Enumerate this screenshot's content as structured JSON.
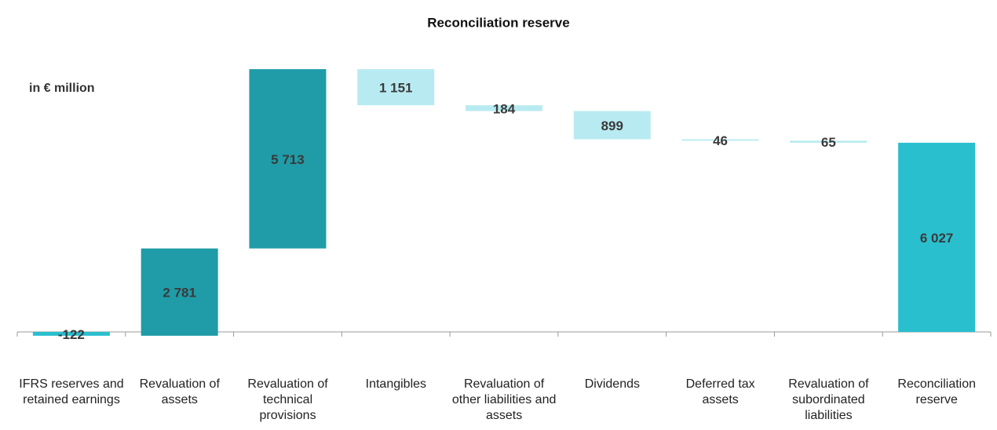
{
  "chart_data": {
    "type": "waterfall",
    "title": "Reconciliation reserve",
    "unit_label": "in € million",
    "categories": [
      "IFRS reserves and retained earnings",
      "Revaluation of assets",
      "Revaluation of technical provisions",
      "Intangibles",
      "Revaluation of other liabilities and assets",
      "Dividends",
      "Deferred tax assets",
      "Revaluation of subordinated liabilities",
      "Reconciliation reserve"
    ],
    "values": [
      -122,
      2781,
      5713,
      -1151,
      -184,
      -899,
      -46,
      -65,
      6027
    ],
    "value_labels": [
      "-122",
      "2 781",
      "5 713",
      "1 151",
      "184",
      "899",
      "46",
      "65",
      "6 027"
    ],
    "measure": [
      "relative",
      "relative",
      "relative",
      "relative",
      "relative",
      "relative",
      "relative",
      "relative",
      "total"
    ],
    "colors": [
      "#29bfcf",
      "#1f9ca8",
      "#1f9ca8",
      "#b8ebf1",
      "#b8ebf1",
      "#b8ebf1",
      "#b8ebf1",
      "#b8ebf1",
      "#29bfcf"
    ],
    "ylim": [
      -500,
      8500
    ]
  }
}
